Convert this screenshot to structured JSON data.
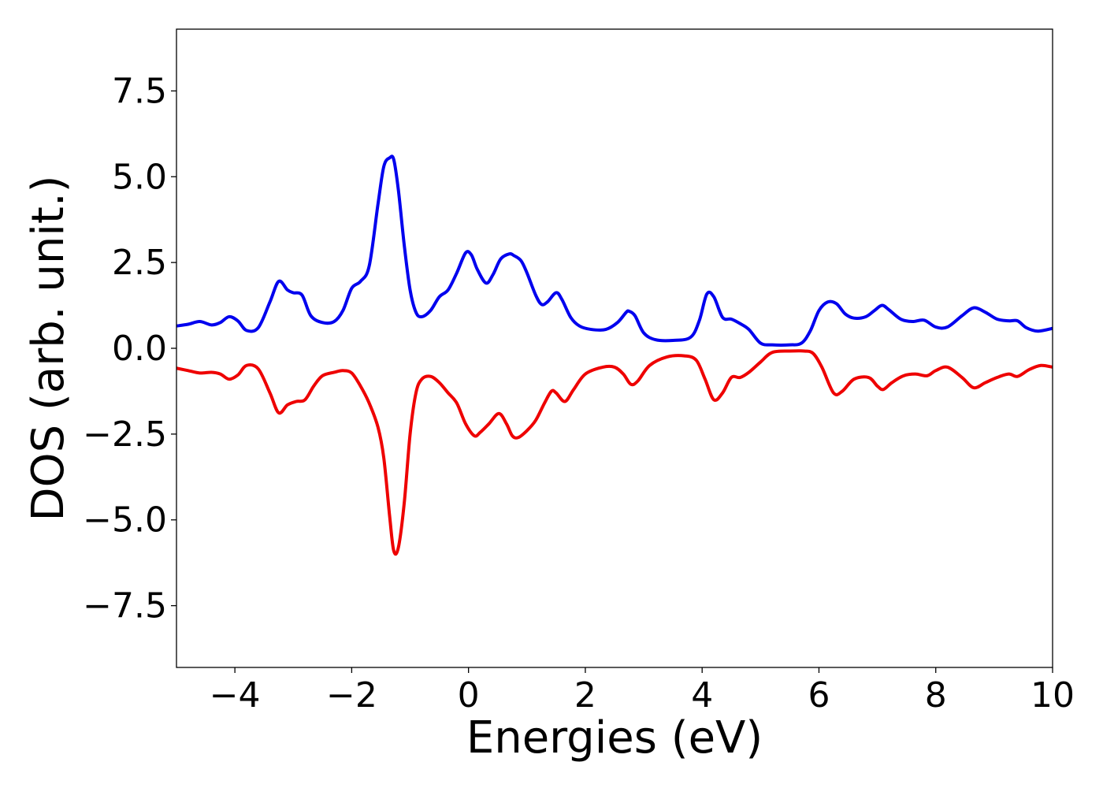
{
  "chart_data": {
    "type": "line",
    "xlabel": "Energies (eV)",
    "ylabel": "DOS (arb. unit.)",
    "xlim": [
      -5,
      10
    ],
    "ylim": [
      -9.3,
      9.3
    ],
    "x_ticks": [
      -4,
      -2,
      0,
      2,
      4,
      6,
      8,
      10
    ],
    "x_tick_labels": [
      "−4",
      "−2",
      "0",
      "2",
      "4",
      "6",
      "8",
      "10"
    ],
    "y_ticks": [
      -7.5,
      -5.0,
      -2.5,
      0.0,
      2.5,
      5.0,
      7.5
    ],
    "y_tick_labels": [
      "−7.5",
      "−5.0",
      "−2.5",
      "0.0",
      "2.5",
      "5.0",
      "7.5"
    ],
    "grid": false,
    "series": [
      {
        "color": "#0000ee",
        "x": [
          -5.0,
          -4.8,
          -4.6,
          -4.4,
          -4.25,
          -4.1,
          -3.95,
          -3.8,
          -3.6,
          -3.4,
          -3.25,
          -3.1,
          -3.0,
          -2.85,
          -2.7,
          -2.5,
          -2.3,
          -2.15,
          -2.0,
          -1.85,
          -1.7,
          -1.55,
          -1.45,
          -1.35,
          -1.28,
          -1.2,
          -1.1,
          -1.0,
          -0.9,
          -0.8,
          -0.65,
          -0.5,
          -0.35,
          -0.2,
          -0.05,
          0.05,
          0.15,
          0.3,
          0.42,
          0.55,
          0.7,
          0.78,
          0.9,
          1.0,
          1.15,
          1.25,
          1.35,
          1.5,
          1.6,
          1.75,
          1.9,
          2.1,
          2.35,
          2.55,
          2.7,
          2.75,
          2.85,
          3.0,
          3.2,
          3.5,
          3.8,
          3.95,
          4.08,
          4.2,
          4.35,
          4.5,
          4.65,
          4.8,
          5.0,
          5.2,
          5.5,
          5.7,
          5.85,
          6.0,
          6.15,
          6.3,
          6.45,
          6.6,
          6.8,
          6.95,
          7.08,
          7.2,
          7.4,
          7.6,
          7.8,
          8.0,
          8.2,
          8.45,
          8.65,
          8.85,
          9.05,
          9.25,
          9.4,
          9.55,
          9.75,
          10.0
        ],
        "y": [
          0.65,
          0.7,
          0.78,
          0.68,
          0.75,
          0.92,
          0.8,
          0.52,
          0.6,
          1.35,
          1.95,
          1.7,
          1.62,
          1.55,
          0.95,
          0.75,
          0.78,
          1.1,
          1.75,
          1.95,
          2.4,
          4.2,
          5.3,
          5.55,
          5.5,
          4.6,
          3.0,
          1.7,
          1.05,
          0.92,
          1.1,
          1.5,
          1.7,
          2.2,
          2.78,
          2.72,
          2.3,
          1.9,
          2.15,
          2.6,
          2.75,
          2.7,
          2.55,
          2.2,
          1.55,
          1.28,
          1.35,
          1.62,
          1.42,
          0.9,
          0.65,
          0.55,
          0.55,
          0.75,
          1.05,
          1.08,
          0.95,
          0.45,
          0.25,
          0.23,
          0.32,
          0.8,
          1.58,
          1.5,
          0.9,
          0.85,
          0.72,
          0.55,
          0.15,
          0.1,
          0.1,
          0.15,
          0.5,
          1.1,
          1.35,
          1.3,
          1.0,
          0.88,
          0.92,
          1.1,
          1.25,
          1.12,
          0.85,
          0.78,
          0.82,
          0.62,
          0.62,
          0.95,
          1.18,
          1.05,
          0.85,
          0.8,
          0.8,
          0.6,
          0.5,
          0.58
        ]
      },
      {
        "color": "#ee0000",
        "x": [
          -5.0,
          -4.8,
          -4.6,
          -4.4,
          -4.25,
          -4.1,
          -3.95,
          -3.8,
          -3.6,
          -3.4,
          -3.25,
          -3.1,
          -2.95,
          -2.8,
          -2.65,
          -2.5,
          -2.3,
          -2.15,
          -2.0,
          -1.85,
          -1.7,
          -1.55,
          -1.45,
          -1.35,
          -1.28,
          -1.2,
          -1.1,
          -1.0,
          -0.9,
          -0.8,
          -0.65,
          -0.5,
          -0.35,
          -0.2,
          -0.05,
          0.1,
          0.2,
          0.35,
          0.52,
          0.65,
          0.75,
          0.85,
          1.0,
          1.15,
          1.3,
          1.42,
          1.5,
          1.65,
          1.8,
          2.0,
          2.3,
          2.5,
          2.65,
          2.78,
          2.9,
          3.1,
          3.4,
          3.7,
          3.9,
          4.05,
          4.2,
          4.35,
          4.5,
          4.65,
          4.8,
          5.0,
          5.2,
          5.5,
          5.75,
          5.9,
          6.05,
          6.25,
          6.4,
          6.6,
          6.85,
          7.0,
          7.1,
          7.25,
          7.45,
          7.65,
          7.85,
          8.0,
          8.2,
          8.45,
          8.65,
          8.85,
          9.05,
          9.25,
          9.4,
          9.6,
          9.8,
          10.0
        ],
        "y": [
          -0.58,
          -0.65,
          -0.72,
          -0.7,
          -0.75,
          -0.9,
          -0.78,
          -0.5,
          -0.6,
          -1.3,
          -1.88,
          -1.65,
          -1.55,
          -1.5,
          -1.1,
          -0.8,
          -0.7,
          -0.65,
          -0.72,
          -1.1,
          -1.6,
          -2.3,
          -3.2,
          -4.9,
          -5.9,
          -5.8,
          -4.5,
          -2.5,
          -1.3,
          -0.9,
          -0.82,
          -1.0,
          -1.3,
          -1.6,
          -2.2,
          -2.55,
          -2.45,
          -2.2,
          -1.9,
          -2.2,
          -2.55,
          -2.6,
          -2.4,
          -2.1,
          -1.6,
          -1.25,
          -1.3,
          -1.55,
          -1.2,
          -0.75,
          -0.55,
          -0.55,
          -0.75,
          -1.05,
          -0.95,
          -0.5,
          -0.25,
          -0.22,
          -0.35,
          -0.9,
          -1.5,
          -1.3,
          -0.85,
          -0.85,
          -0.7,
          -0.4,
          -0.12,
          -0.08,
          -0.08,
          -0.15,
          -0.55,
          -1.3,
          -1.25,
          -0.9,
          -0.85,
          -1.1,
          -1.2,
          -1.0,
          -0.8,
          -0.75,
          -0.8,
          -0.65,
          -0.55,
          -0.85,
          -1.15,
          -1.0,
          -0.85,
          -0.75,
          -0.82,
          -0.62,
          -0.5,
          -0.55
        ]
      }
    ]
  }
}
